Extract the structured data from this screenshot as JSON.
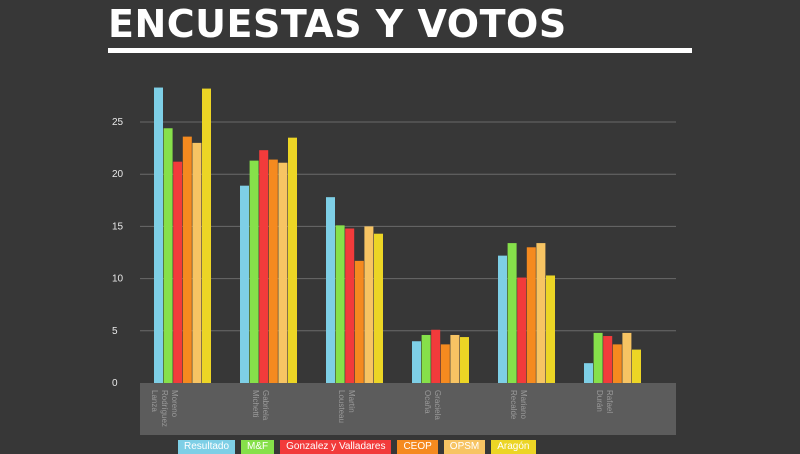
{
  "title": "ENCUESTAS Y VOTOS",
  "chart_data": {
    "type": "bar",
    "title": "ENCUESTAS Y VOTOS",
    "xlabel": "",
    "ylabel": "",
    "ylim": [
      0,
      30
    ],
    "yticks": [
      0,
      5,
      10,
      15,
      20,
      25
    ],
    "grid": true,
    "legend_position": "bottom",
    "categories": [
      "Moreno Rodríguez Lanza",
      "Gabriela Michetti",
      "Martín Lousteau",
      "Graciela Ocaña",
      "Mariano Recalde",
      "Rafael Durán"
    ],
    "series": [
      {
        "name": "Resultado",
        "color": "#7ecfe6",
        "values": [
          28.3,
          18.9,
          17.8,
          4.0,
          12.2,
          1.9
        ]
      },
      {
        "name": "M&F",
        "color": "#86e04a",
        "values": [
          24.4,
          21.3,
          15.1,
          4.6,
          13.4,
          4.8
        ]
      },
      {
        "name": "Gonzalez y Valladares",
        "color": "#f23b3b",
        "values": [
          21.2,
          22.3,
          14.8,
          5.1,
          10.1,
          4.5
        ]
      },
      {
        "name": "CEOP",
        "color": "#f58a1f",
        "values": [
          23.6,
          21.4,
          11.7,
          3.7,
          13.0,
          3.7
        ]
      },
      {
        "name": "OPSM",
        "color": "#f7c463",
        "values": [
          23.0,
          21.1,
          15.0,
          4.6,
          13.4,
          4.8
        ]
      },
      {
        "name": "Aragón",
        "color": "#ecd525",
        "values": [
          28.2,
          23.5,
          14.3,
          4.4,
          10.3,
          3.2
        ]
      }
    ]
  }
}
